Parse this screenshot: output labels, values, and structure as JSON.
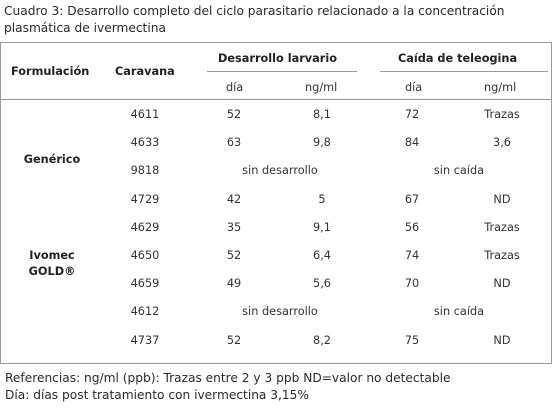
{
  "caption": {
    "line1": "Cuadro 3: Desarrollo completo del ciclo parasitario relacionado a la concentración",
    "line2": "plasmática de ivermectina"
  },
  "headers": {
    "formulacion": "Formulación",
    "caravana": "Caravana",
    "desarrollo": "Desarrollo larvario",
    "caida": "Caída de teleogina",
    "dia1": "día",
    "ngml1": "ng/ml",
    "dia2": "día",
    "ngml2": "ng/ml"
  },
  "groups": {
    "generico": "Genérico",
    "ivomec_line1": "Ivomec",
    "ivomec_line2": "GOLD®"
  },
  "rows": [
    {
      "caravana": "4611",
      "d_dia": "52",
      "d_ng": "8,1",
      "c_dia": "72",
      "c_ng": "Trazas"
    },
    {
      "caravana": "4633",
      "d_dia": "63",
      "d_ng": "9,8",
      "c_dia": "84",
      "c_ng": "3,6"
    },
    {
      "caravana": "9818",
      "d_span": "sin desarrollo",
      "c_span": "sin caída"
    },
    {
      "caravana": "4729",
      "d_dia": "42",
      "d_ng": "5",
      "c_dia": "67",
      "c_ng": "ND"
    },
    {
      "caravana": "4629",
      "d_dia": "35",
      "d_ng": "9,1",
      "c_dia": "56",
      "c_ng": "Trazas"
    },
    {
      "caravana": "4650",
      "d_dia": "52",
      "d_ng": "6,4",
      "c_dia": "74",
      "c_ng": "Trazas"
    },
    {
      "caravana": "4659",
      "d_dia": "49",
      "d_ng": "5,6",
      "c_dia": "70",
      "c_ng": "ND"
    },
    {
      "caravana": "4612",
      "d_span": "sin desarrollo",
      "c_span": "sin caída"
    },
    {
      "caravana": "4737",
      "d_dia": "52",
      "d_ng": "8,2",
      "c_dia": "75",
      "c_ng": "ND"
    }
  ],
  "notes": {
    "line1": "Referencias: ng/ml (ppb): Trazas entre 2 y 3 ppb ND=valor no detectable",
    "line2": "Día: días post tratamiento con ivermectina 3,15%"
  }
}
